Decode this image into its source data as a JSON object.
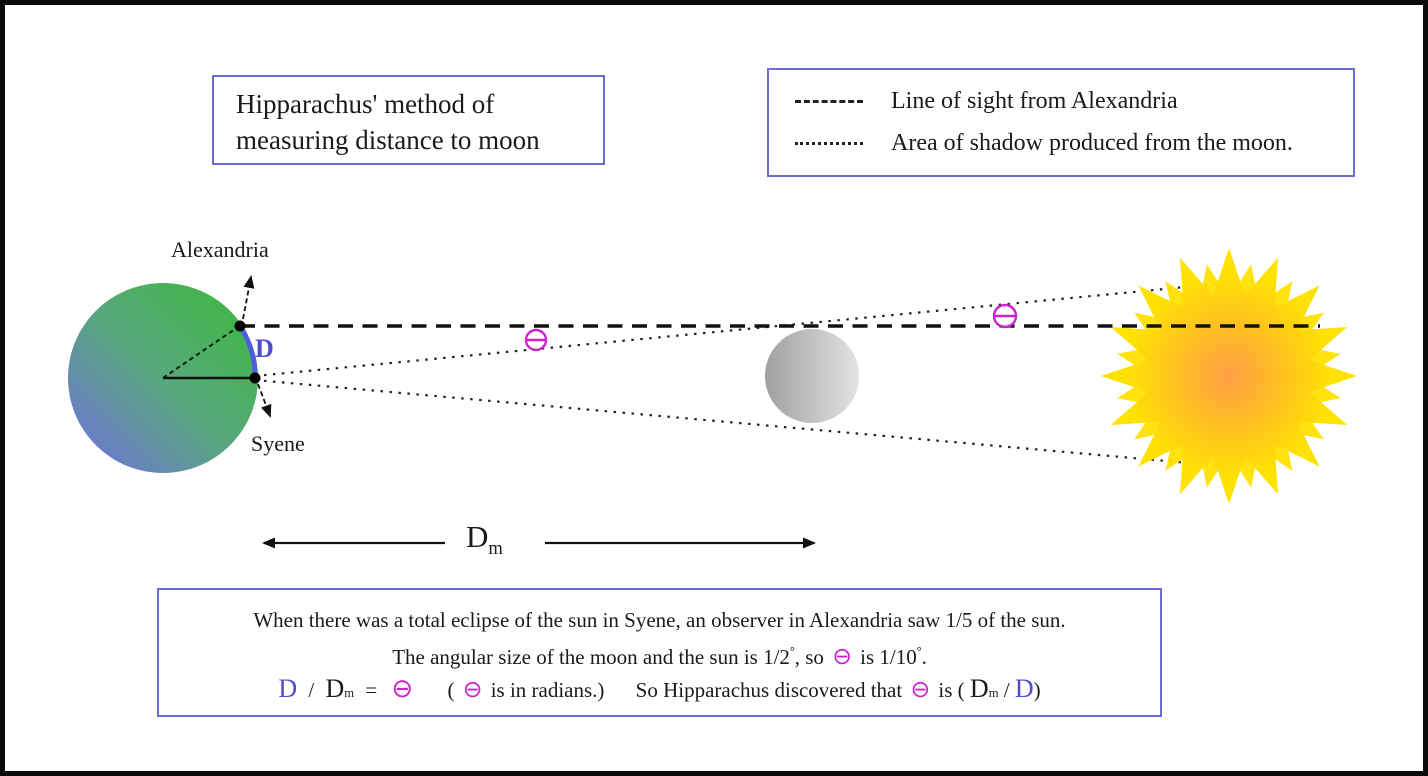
{
  "title_box": {
    "line1": "Hipparachus' method of",
    "line2": "measuring distance to moon"
  },
  "legend": {
    "items": [
      {
        "label": "Line of sight from Alexandria",
        "line_style": "dashed"
      },
      {
        "label": "Area of shadow produced from the moon.",
        "line_style": "dotted"
      }
    ]
  },
  "diagram": {
    "earth_label_top": "Alexandria",
    "earth_label_bottom": "Syene",
    "arc_label": "D",
    "distance_label": {
      "main": "D",
      "sub": "m"
    },
    "theta_symbol": "⊖"
  },
  "caption": {
    "line1": "When there was a total eclipse of the sun in Syene, an observer in Alexandria saw 1/5 of the sun.",
    "line2": {
      "a": "The angular size of the moon and the sun is 1/2",
      "deg": "°",
      "b": ", so",
      "c": "is 1/10",
      "d": "."
    },
    "line3": {
      "d_label": "D",
      "slash": "/",
      "dm_main": "D",
      "dm_sub": "m",
      "equals": "=",
      "paren_open": "(",
      "radians_note": "is in radians.)",
      "discovered": "So Hipparachus discovered that",
      "is_open": "is (",
      "slash2": "/",
      "paren_close": ")"
    },
    "theta": "⊖"
  },
  "colors": {
    "box_border_blue": "#6c6cd8",
    "earth_green": "#3eb83e",
    "earth_blue": "#6f74d8",
    "arc_blue": "#4d5fd8",
    "label_d_blue": "#4d4dd0",
    "moon_gray_dark": "#a0a0a0",
    "moon_gray_light": "#e3e3e3",
    "sun_yellow": "#ffe103",
    "sun_orange": "#ff9e45",
    "theta_magenta": "#cc22cc",
    "line_black": "#111111"
  }
}
